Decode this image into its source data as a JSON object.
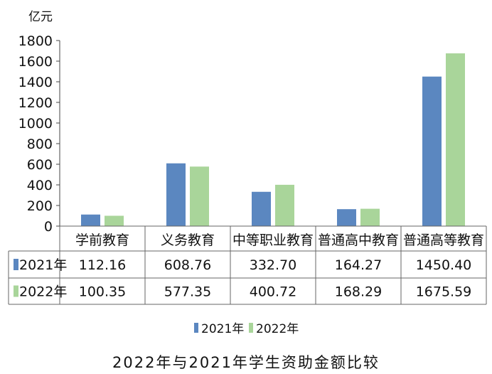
{
  "chart_data": {
    "type": "bar",
    "title": "2022年与2021年学生资助金额比较",
    "ylabel": "亿元",
    "ylim": [
      0,
      1800
    ],
    "yticks": [
      0,
      200,
      400,
      600,
      800,
      1000,
      1200,
      1400,
      1600,
      1800
    ],
    "grid": false,
    "legend": "bottom",
    "categories": [
      "学前教育",
      "义务教育",
      "中等职业教育",
      "普通高中教育",
      "普通高等教育"
    ],
    "series": [
      {
        "name": "2021年",
        "color": "#5b87c0",
        "values": [
          112.16,
          608.76,
          332.7,
          164.27,
          1450.4
        ],
        "labels": [
          "112.16",
          "608.76",
          "332.70",
          "164.27",
          "1450.40"
        ]
      },
      {
        "name": "2022年",
        "color": "#a9d59a",
        "values": [
          100.35,
          577.35,
          400.72,
          168.29,
          1675.59
        ],
        "labels": [
          "100.35",
          "577.35",
          "400.72",
          "168.29",
          "1675.59"
        ]
      }
    ],
    "data_table": true
  }
}
